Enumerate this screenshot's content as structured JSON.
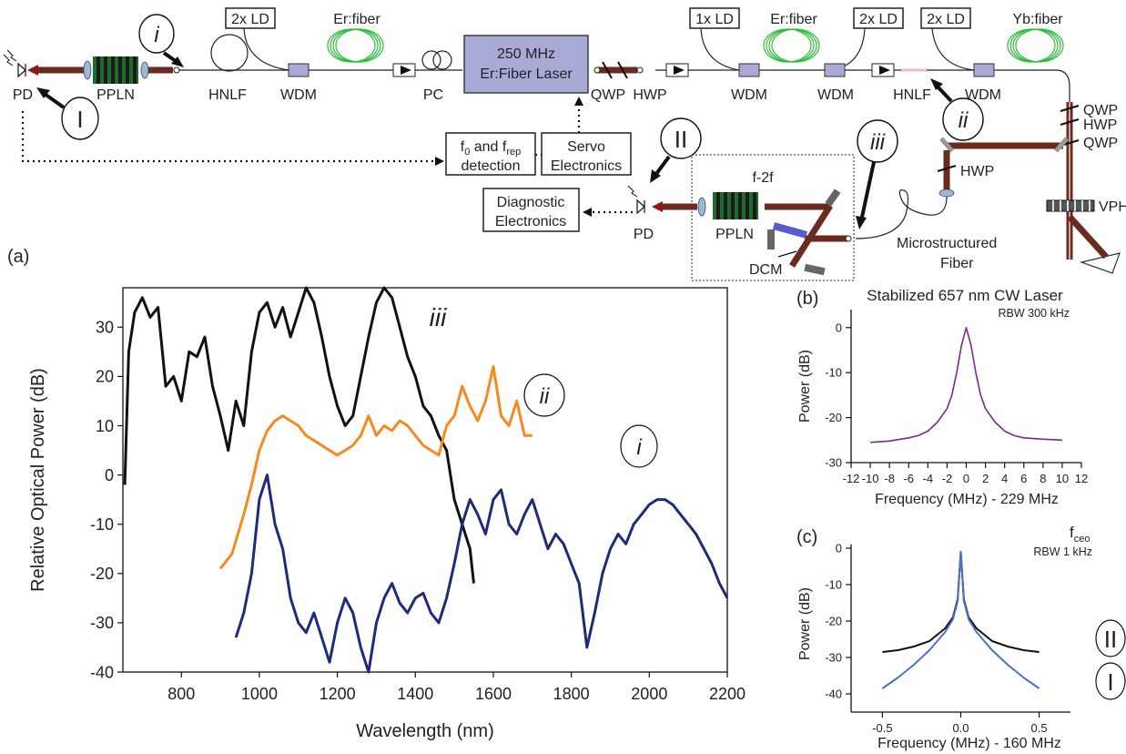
{
  "colors": {
    "black": "#111111",
    "orange": "#f58a1f",
    "navy": "#1f2a7a",
    "purple": "#7a2a86",
    "blue": "#4f6fc4",
    "laser_box": "#a9a9d6",
    "beam": "#6b2a20",
    "fiber_coil": "#2fbe3a"
  },
  "diagram": {
    "panel_label": "(a)",
    "pd_left": "PD",
    "pd_right": "PD",
    "ppln_left": "PPLN",
    "ppln_right": "PPLN",
    "hnlf_1": "HNLF",
    "hnlf_2": "HNLF",
    "ld_2x_a": "2x LD",
    "ld_1x": "1x LD",
    "ld_2x_b": "2x LD",
    "ld_2x_c": "2x LD",
    "er_fiber_a": "Er:fiber",
    "er_fiber_b": "Er:fiber",
    "yb_fiber": "Yb:fiber",
    "wdm_1": "WDM",
    "wdm_2": "WDM",
    "wdm_3": "WDM",
    "wdm_4": "WDM",
    "pc": "PC",
    "laser_line1": "250 MHz",
    "laser_line2": "Er:Fiber Laser",
    "qwp_1": "QWP",
    "hwp_1": "HWP",
    "qwp_2": "QWP",
    "hwp_2": "HWP",
    "qwp_3": "QWP",
    "hwp_3": "HWP",
    "vph": "VPH",
    "f0_line1": "f",
    "f0_sub": "0",
    "f0_mid": " and f",
    "f0_sub2": "rep",
    "f0_line2": "detection",
    "servo_line1": "Servo",
    "servo_line2": "Electronics",
    "diag_line1": "Diagnostic",
    "diag_line2": "Electronics",
    "f2f": "f-2f",
    "dcm": "DCM",
    "msf_line1": "Microstructured",
    "msf_line2": "Fiber",
    "callout_i": "i",
    "callout_I": "I",
    "callout_ii": "ii",
    "callout_II": "II",
    "callout_iii": "iii"
  },
  "chart_data": [
    {
      "type": "line",
      "panel": "(a)",
      "xlabel": "Wavelength (nm)",
      "ylabel": "Relative Optical Power (dB)",
      "xlim": [
        650,
        2200
      ],
      "ylim": [
        -40,
        38
      ],
      "xticks": [
        800,
        1000,
        1200,
        1400,
        1600,
        1800,
        2000,
        2200
      ],
      "yticks": [
        -40,
        -30,
        -20,
        -10,
        0,
        10,
        20,
        30
      ],
      "grid": false,
      "series": [
        {
          "name": "iii",
          "color": "#111111",
          "x": [
            655,
            665,
            680,
            700,
            720,
            740,
            760,
            780,
            800,
            820,
            840,
            860,
            880,
            900,
            920,
            940,
            960,
            980,
            1000,
            1020,
            1040,
            1060,
            1080,
            1100,
            1120,
            1140,
            1160,
            1180,
            1200,
            1220,
            1240,
            1260,
            1280,
            1300,
            1320,
            1340,
            1360,
            1380,
            1400,
            1420,
            1440,
            1460,
            1480,
            1500,
            1520,
            1540,
            1550
          ],
          "y": [
            -2,
            25,
            33,
            36,
            32,
            34,
            18,
            20,
            15,
            25,
            24,
            28,
            18,
            12,
            5,
            15,
            10,
            25,
            33,
            35,
            30,
            34,
            28,
            33,
            38,
            35,
            28,
            20,
            14,
            10,
            12,
            20,
            28,
            35,
            38,
            36,
            30,
            24,
            20,
            14,
            12,
            8,
            5,
            -5,
            -10,
            -15,
            -22
          ]
        },
        {
          "name": "ii",
          "color": "#f58a1f",
          "x": [
            900,
            930,
            960,
            980,
            1000,
            1020,
            1040,
            1060,
            1080,
            1100,
            1120,
            1140,
            1160,
            1180,
            1200,
            1220,
            1240,
            1260,
            1280,
            1300,
            1320,
            1340,
            1360,
            1380,
            1400,
            1420,
            1440,
            1460,
            1480,
            1500,
            1520,
            1540,
            1560,
            1580,
            1600,
            1620,
            1640,
            1660,
            1680,
            1700
          ],
          "y": [
            -19,
            -16,
            -8,
            -2,
            5,
            9,
            11,
            12,
            11,
            10,
            8,
            7,
            6,
            5,
            4,
            5,
            6,
            8,
            12,
            8,
            10,
            9,
            11,
            10,
            8,
            6,
            5,
            4,
            10,
            12,
            18,
            14,
            11,
            15,
            22,
            12,
            10,
            15,
            8,
            8
          ]
        },
        {
          "name": "i",
          "color": "#1f2a7a",
          "x": [
            940,
            960,
            980,
            1000,
            1020,
            1040,
            1060,
            1080,
            1100,
            1120,
            1140,
            1160,
            1180,
            1200,
            1220,
            1240,
            1260,
            1280,
            1300,
            1320,
            1340,
            1360,
            1380,
            1400,
            1420,
            1440,
            1460,
            1480,
            1500,
            1520,
            1540,
            1560,
            1580,
            1600,
            1620,
            1640,
            1660,
            1680,
            1700,
            1720,
            1740,
            1760,
            1780,
            1800,
            1820,
            1840,
            1860,
            1880,
            1900,
            1920,
            1940,
            1960,
            1980,
            2000,
            2020,
            2040,
            2060,
            2080,
            2100,
            2120,
            2140,
            2160,
            2180,
            2200
          ],
          "y": [
            -33,
            -28,
            -20,
            -5,
            0,
            -10,
            -15,
            -25,
            -30,
            -32,
            -28,
            -33,
            -38,
            -30,
            -25,
            -28,
            -35,
            -40,
            -30,
            -25,
            -22,
            -26,
            -28,
            -25,
            -24,
            -28,
            -30,
            -25,
            -18,
            -10,
            -5,
            -8,
            -12,
            -5,
            -3,
            -10,
            -12,
            -8,
            -5,
            -10,
            -15,
            -12,
            -14,
            -18,
            -22,
            -35,
            -28,
            -20,
            -15,
            -12,
            -14,
            -10,
            -8,
            -6,
            -5,
            -5,
            -6,
            -8,
            -10,
            -12,
            -15,
            -18,
            -22,
            -25
          ]
        }
      ]
    },
    {
      "type": "line",
      "panel": "(b)",
      "title": "Stabilized 657 nm CW Laser",
      "annotation": "RBW 300 kHz",
      "xlabel": "Frequency (MHz) - 229 MHz",
      "ylabel": "Power (dB)",
      "xlim": [
        -12,
        12
      ],
      "ylim": [
        -30,
        4
      ],
      "xticks": [
        -12,
        -10,
        -8,
        -6,
        -4,
        -2,
        0,
        2,
        4,
        6,
        8,
        10,
        12
      ],
      "yticks": [
        -30,
        -20,
        -10,
        0
      ],
      "series": [
        {
          "color": "#7a2a86",
          "x": [
            -10,
            -8,
            -6,
            -5,
            -4,
            -3,
            -2,
            -1.5,
            -1,
            -0.5,
            0,
            0.5,
            1,
            1.5,
            2,
            3,
            4,
            5,
            6,
            8,
            10
          ],
          "y": [
            -25.5,
            -25.2,
            -24.5,
            -24,
            -23,
            -21,
            -18,
            -15,
            -10,
            -4,
            0,
            -4,
            -10,
            -15,
            -18,
            -21,
            -23,
            -24,
            -24.5,
            -24.8,
            -25
          ]
        }
      ]
    },
    {
      "type": "line",
      "panel": "(c)",
      "title_main": "f",
      "title_sub": "ceo",
      "annotation": "RBW 1 kHz",
      "xlabel": "Frequency (MHz) - 160 MHz",
      "ylabel": "Power (dB)",
      "xlim": [
        -0.7,
        0.7
      ],
      "ylim": [
        -45,
        1
      ],
      "xticks": [
        -0.5,
        0.0,
        0.5
      ],
      "yticks": [
        -40,
        -30,
        -20,
        -10,
        0
      ],
      "series": [
        {
          "name": "II",
          "color": "#111111",
          "x": [
            -0.5,
            -0.4,
            -0.3,
            -0.2,
            -0.1,
            -0.05,
            -0.02,
            0,
            0.02,
            0.05,
            0.1,
            0.2,
            0.3,
            0.4,
            0.5
          ],
          "y": [
            -28.5,
            -28,
            -27,
            -25.5,
            -22,
            -19,
            -14,
            -1,
            -14,
            -19,
            -22,
            -25.5,
            -27,
            -28,
            -28.5
          ]
        },
        {
          "name": "I",
          "color": "#4f6fc4",
          "x": [
            -0.5,
            -0.4,
            -0.3,
            -0.2,
            -0.1,
            -0.05,
            -0.02,
            0,
            0.02,
            0.05,
            0.1,
            0.2,
            0.3,
            0.4,
            0.5
          ],
          "y": [
            -38.5,
            -35.5,
            -32,
            -28,
            -23,
            -19.5,
            -14.5,
            -1,
            -14.5,
            -19.5,
            -23,
            -28,
            -32,
            -35.5,
            -38.5
          ]
        }
      ]
    }
  ]
}
